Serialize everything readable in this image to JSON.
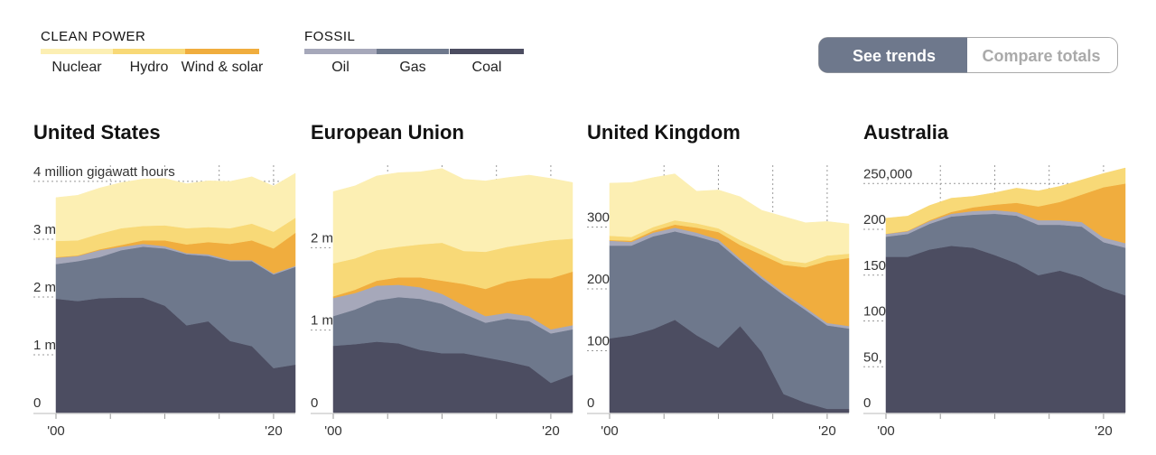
{
  "legend_groups": {
    "clean": "CLEAN POWER",
    "fossil": "FOSSIL"
  },
  "toggle": {
    "options": [
      "See trends",
      "Compare totals"
    ]
  },
  "chart_data": [
    {
      "type": "area",
      "stacked": true,
      "title": "United States",
      "x": [
        2000,
        2002,
        2004,
        2006,
        2008,
        2010,
        2012,
        2014,
        2016,
        2018,
        2020,
        2022
      ],
      "xlim": [
        2000,
        2022
      ],
      "xticks": [
        {
          "value": 2000,
          "label": "'00"
        },
        {
          "value": 2020,
          "label": "'20"
        }
      ],
      "xminorticks": [
        2005,
        2010,
        2015
      ],
      "ylim": [
        0,
        4.28
      ],
      "yticks": [
        0,
        {
          "value": 1,
          "label": "1 m"
        },
        {
          "value": 2,
          "label": "2 m"
        },
        {
          "value": 3,
          "label": "3 m"
        },
        {
          "value": 4,
          "label": "4 million gigawatt hours"
        }
      ],
      "grid": true,
      "series": [
        {
          "name": "Coal",
          "color": "#4c4d61",
          "values": [
            1.97,
            1.93,
            1.98,
            1.99,
            1.99,
            1.85,
            1.51,
            1.58,
            1.24,
            1.15,
            0.77,
            0.83
          ]
        },
        {
          "name": "Gas",
          "color": "#6e788c",
          "values": [
            0.6,
            0.69,
            0.71,
            0.82,
            0.88,
            0.99,
            1.23,
            1.13,
            1.38,
            1.47,
            1.62,
            1.69
          ]
        },
        {
          "name": "Oil",
          "color": "#a6a8ba",
          "values": [
            0.11,
            0.09,
            0.12,
            0.06,
            0.05,
            0.04,
            0.02,
            0.03,
            0.02,
            0.02,
            0.02,
            0.02
          ]
        },
        {
          "name": "Wind & solar",
          "color": "#f0ad3e",
          "values": [
            0.01,
            0.01,
            0.015,
            0.03,
            0.06,
            0.1,
            0.15,
            0.21,
            0.28,
            0.34,
            0.43,
            0.57
          ]
        },
        {
          "name": "Hydro",
          "color": "#f8d977",
          "values": [
            0.28,
            0.26,
            0.27,
            0.29,
            0.25,
            0.26,
            0.28,
            0.26,
            0.27,
            0.29,
            0.29,
            0.26
          ]
        },
        {
          "name": "Nuclear",
          "color": "#fcefb3",
          "values": [
            0.75,
            0.78,
            0.79,
            0.79,
            0.81,
            0.81,
            0.77,
            0.8,
            0.81,
            0.81,
            0.79,
            0.77
          ]
        }
      ]
    },
    {
      "type": "area",
      "stacked": true,
      "title": "European Union",
      "x": [
        2000,
        2002,
        2004,
        2006,
        2008,
        2010,
        2012,
        2014,
        2016,
        2018,
        2020,
        2022
      ],
      "xlim": [
        2000,
        2022
      ],
      "xticks": [
        {
          "value": 2000,
          "label": "'00"
        },
        {
          "value": 2020,
          "label": "'20"
        }
      ],
      "xminorticks": [
        2005,
        2010,
        2015
      ],
      "ylim": [
        0,
        3
      ],
      "yticks": [
        0,
        {
          "value": 1,
          "label": "1 m"
        },
        {
          "value": 2,
          "label": "2 m"
        }
      ],
      "grid": true,
      "series": [
        {
          "name": "Coal",
          "color": "#4c4d61",
          "values": [
            0.81,
            0.83,
            0.86,
            0.84,
            0.76,
            0.72,
            0.72,
            0.67,
            0.62,
            0.56,
            0.36,
            0.46
          ]
        },
        {
          "name": "Gas",
          "color": "#6e788c",
          "values": [
            0.36,
            0.42,
            0.5,
            0.56,
            0.62,
            0.6,
            0.48,
            0.42,
            0.52,
            0.55,
            0.6,
            0.55
          ]
        },
        {
          "name": "Oil",
          "color": "#a6a8ba",
          "values": [
            0.22,
            0.2,
            0.18,
            0.15,
            0.14,
            0.12,
            0.1,
            0.08,
            0.07,
            0.06,
            0.05,
            0.05
          ]
        },
        {
          "name": "Wind & solar",
          "color": "#f0ad3e",
          "values": [
            0.02,
            0.04,
            0.06,
            0.09,
            0.12,
            0.16,
            0.26,
            0.33,
            0.38,
            0.46,
            0.62,
            0.65
          ]
        },
        {
          "name": "Hydro",
          "color": "#f8d977",
          "values": [
            0.4,
            0.38,
            0.37,
            0.37,
            0.4,
            0.46,
            0.4,
            0.45,
            0.42,
            0.42,
            0.46,
            0.4
          ]
        },
        {
          "name": "Nuclear",
          "color": "#fcefb3",
          "values": [
            0.87,
            0.88,
            0.9,
            0.9,
            0.88,
            0.9,
            0.87,
            0.86,
            0.84,
            0.83,
            0.75,
            0.68
          ]
        }
      ]
    },
    {
      "type": "area",
      "stacked": true,
      "title": "United Kingdom",
      "x": [
        2000,
        2002,
        2004,
        2006,
        2008,
        2010,
        2012,
        2014,
        2016,
        2018,
        2020,
        2022
      ],
      "xlim": [
        2000,
        2022
      ],
      "xticks": [
        {
          "value": 2000,
          "label": "'00"
        },
        {
          "value": 2020,
          "label": "'20"
        }
      ],
      "xminorticks": [
        2005,
        2010,
        2015
      ],
      "ylim": [
        0,
        400
      ],
      "yticks": [
        0,
        100,
        200,
        300
      ],
      "grid": true,
      "series": [
        {
          "name": "Coal",
          "color": "#4c4d61",
          "values": [
            120,
            125,
            135,
            150,
            125,
            105,
            140,
            98,
            30,
            16,
            6,
            6
          ]
        },
        {
          "name": "Gas",
          "color": "#6e788c",
          "values": [
            150,
            145,
            150,
            143,
            160,
            170,
            105,
            118,
            160,
            150,
            135,
            130
          ]
        },
        {
          "name": "Oil",
          "color": "#a6a8ba",
          "values": [
            8,
            6,
            6,
            6,
            6,
            5,
            4,
            4,
            4,
            4,
            4,
            4
          ]
        },
        {
          "name": "Wind & solar",
          "color": "#f0ad3e",
          "values": [
            1,
            2,
            3,
            5,
            8,
            12,
            22,
            35,
            45,
            65,
            100,
            110
          ]
        },
        {
          "name": "Hydro",
          "color": "#f8d977",
          "values": [
            7,
            6,
            6,
            7,
            7,
            6,
            8,
            8,
            7,
            7,
            9,
            7
          ]
        },
        {
          "name": "Nuclear",
          "color": "#fcefb3",
          "values": [
            85,
            88,
            80,
            75,
            52,
            62,
            70,
            64,
            71,
            65,
            55,
            48
          ]
        }
      ]
    },
    {
      "type": "area",
      "stacked": true,
      "title": "Australia",
      "x": [
        2000,
        2002,
        2004,
        2006,
        2008,
        2010,
        2012,
        2014,
        2016,
        2018,
        2020,
        2022
      ],
      "xlim": [
        2000,
        2022
      ],
      "xticks": [
        {
          "value": 2000,
          "label": "'00"
        },
        {
          "value": 2020,
          "label": "'20"
        }
      ],
      "xminorticks": [
        2005,
        2010,
        2015
      ],
      "ylim": [
        0,
        270
      ],
      "yticks": [
        0,
        {
          "value": 50,
          "label": "50,"
        },
        100,
        150,
        200,
        {
          "value": 250,
          "label": "250,000"
        }
      ],
      "grid": true,
      "series": [
        {
          "name": "Coal",
          "color": "#4c4d61",
          "values": [
            170,
            170,
            178,
            182,
            180,
            172,
            163,
            150,
            155,
            148,
            136,
            128
          ]
        },
        {
          "name": "Gas",
          "color": "#6e788c",
          "values": [
            22,
            25,
            28,
            32,
            36,
            45,
            52,
            55,
            50,
            55,
            50,
            52
          ]
        },
        {
          "name": "Oil",
          "color": "#a6a8ba",
          "values": [
            3,
            3,
            3,
            3,
            4,
            4,
            4,
            5,
            5,
            5,
            5,
            5
          ]
        },
        {
          "name": "Wind & solar",
          "color": "#f0ad3e",
          "values": [
            0.2,
            0.5,
            1,
            2,
            4,
            6,
            10,
            15,
            20,
            30,
            55,
            65
          ]
        },
        {
          "name": "Hydro",
          "color": "#f8d977",
          "values": [
            17,
            16,
            16,
            15,
            12,
            13,
            16,
            17,
            17,
            16,
            15,
            17
          ]
        }
      ]
    }
  ]
}
